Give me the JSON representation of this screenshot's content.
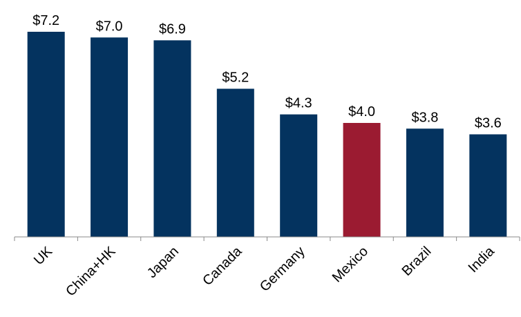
{
  "chart_data": {
    "type": "bar",
    "categories": [
      "UK",
      "China+HK",
      "Japan",
      "Canada",
      "Germany",
      "Mexico",
      "Brazil",
      "India"
    ],
    "values": [
      7.2,
      7.0,
      6.9,
      5.2,
      4.3,
      4.0,
      3.8,
      3.6
    ],
    "value_labels": [
      "$7.2",
      "$7.0",
      "$6.9",
      "$5.2",
      "$4.3",
      "$4.0",
      "$3.8",
      "$3.6"
    ],
    "colors": [
      "#04335f",
      "#04335f",
      "#04335f",
      "#04335f",
      "#04335f",
      "#9b1b31",
      "#04335f",
      "#04335f"
    ]
  }
}
